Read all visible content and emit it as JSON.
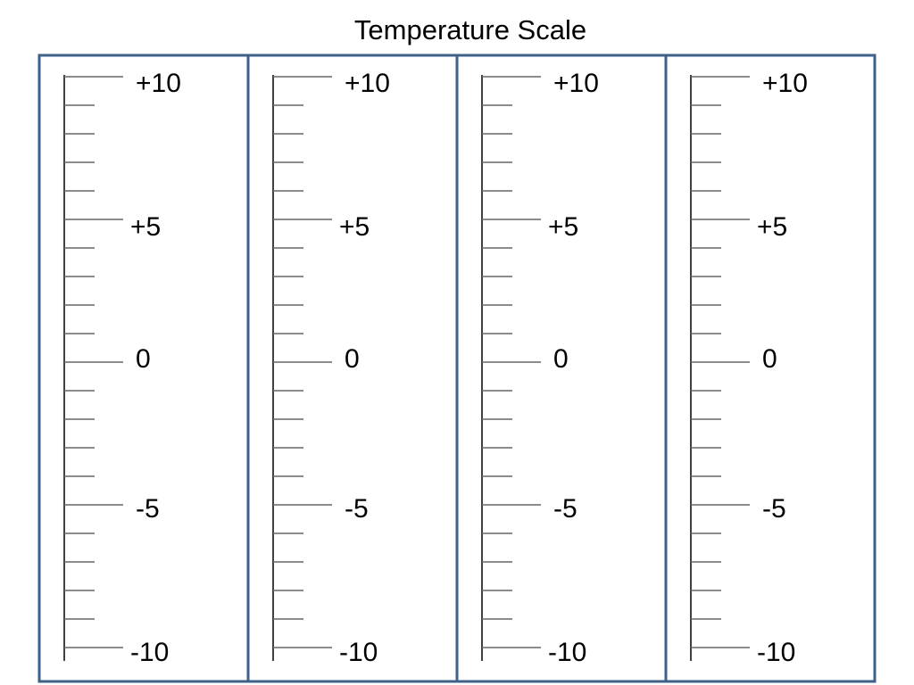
{
  "title": "Temperature Scale",
  "scales": [
    {
      "labels": [
        "+10",
        "+5",
        "0",
        "-5",
        "-10"
      ]
    },
    {
      "labels": [
        "+10",
        "+5",
        "0",
        "-5",
        "-10"
      ]
    },
    {
      "labels": [
        "+10",
        "+5",
        "0",
        "-5",
        "-10"
      ]
    },
    {
      "labels": [
        "+10",
        "+5",
        "0",
        "-5",
        "-10"
      ]
    }
  ]
}
